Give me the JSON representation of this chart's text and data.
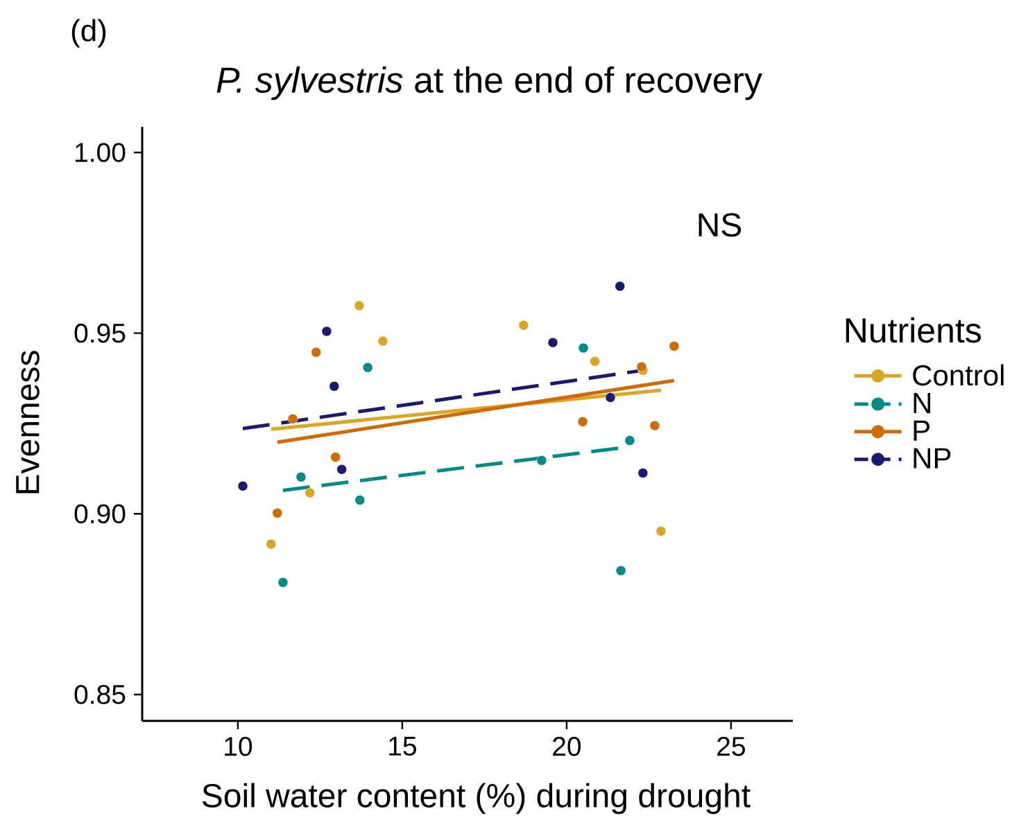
{
  "chart_data": {
    "type": "scatter",
    "title": "*P. sylvestris* at the end of recovery",
    "xlabel": "Soil water content (%) during drought",
    "ylabel": "Evenness",
    "legend_title": "Nutrients",
    "annotations": [
      "(d)",
      "NS"
    ],
    "xlim": [
      7.09,
      26.88
    ],
    "ylim": [
      0.8427,
      1.0071
    ],
    "xticks": [
      10,
      15,
      20,
      25
    ],
    "yticks": [
      {
        "value": 0.85,
        "label": "0.85"
      },
      {
        "value": 0.9,
        "label": "0.90"
      },
      {
        "value": 0.95,
        "label": "0.95"
      },
      {
        "value": 1.0,
        "label": "1.00"
      }
    ],
    "grid": false,
    "legend": "right",
    "series": [
      {
        "name": "Control",
        "marker": "circle",
        "color": "#dba626",
        "x": [
          11.01,
          12.19,
          13.69,
          14.41,
          18.69,
          20.86,
          22.32,
          22.87
        ],
        "values": [
          0.8916,
          0.9058,
          0.9576,
          0.9478,
          0.9522,
          0.9422,
          0.9397,
          0.8952
        ]
      },
      {
        "name": "N",
        "marker": "circle",
        "color": "#008b86",
        "x": [
          11.37,
          11.92,
          13.71,
          13.95,
          19.24,
          20.51,
          21.65,
          21.92
        ],
        "values": [
          0.881,
          0.9102,
          0.9038,
          0.9405,
          0.9148,
          0.9459,
          0.8843,
          0.9203
        ]
      },
      {
        "name": "P",
        "marker": "circle",
        "color": "#d06a05",
        "x": [
          11.2,
          11.67,
          12.38,
          12.97,
          20.49,
          22.28,
          22.68,
          23.27
        ],
        "values": [
          0.9002,
          0.9263,
          0.9447,
          0.9157,
          0.9255,
          0.9407,
          0.9244,
          0.9464
        ]
      },
      {
        "name": "NP",
        "marker": "circle",
        "color": "#1c1a70",
        "x": [
          10.15,
          12.7,
          12.93,
          13.16,
          19.58,
          21.33,
          21.62,
          22.32
        ],
        "values": [
          0.9077,
          0.9505,
          0.9353,
          0.9123,
          0.9474,
          0.9322,
          0.963,
          0.9113
        ]
      },
      {
        "type": "line",
        "line_style": "solid",
        "marker": "none",
        "color": "#dba626",
        "x": [
          11.01,
          22.87
        ],
        "values": [
          0.9234,
          0.9342
        ]
      },
      {
        "type": "line",
        "line_style": "dashed",
        "marker": "none",
        "color": "#008b86",
        "x": [
          11.37,
          21.79
        ],
        "values": [
          0.9065,
          0.9184
        ]
      },
      {
        "type": "line",
        "line_style": "solid",
        "marker": "none",
        "color": "#d06a05",
        "x": [
          11.2,
          23.27
        ],
        "values": [
          0.9198,
          0.9369
        ]
      },
      {
        "type": "line",
        "line_style": "dashed",
        "marker": "none",
        "color": "#1c1a70",
        "x": [
          10.15,
          22.32
        ],
        "values": [
          0.9236,
          0.9397
        ]
      }
    ]
  }
}
